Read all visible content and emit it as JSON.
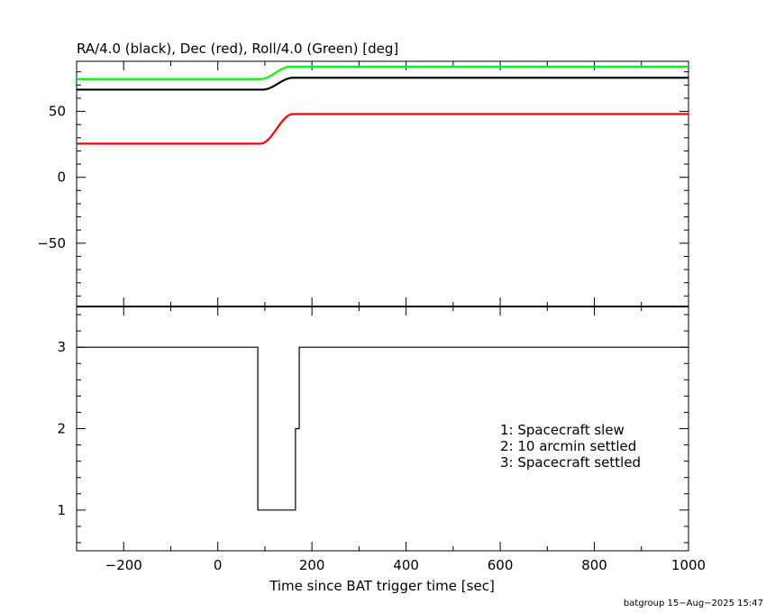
{
  "chart_data": [
    {
      "type": "line",
      "title": "RA/4.0 (black), Dec (red), Roll/4.0 (Green) [deg]",
      "xlim": [
        -300,
        1000
      ],
      "ylim": [
        -98,
        88
      ],
      "yticks": [
        -50,
        0,
        50
      ],
      "ytick_labels": [
        "−50",
        "0",
        "50"
      ],
      "grid": false,
      "series": [
        {
          "color": "#000000",
          "x": [
            -300,
            95,
            160,
            1000
          ],
          "y": [
            66.5,
            66.5,
            75.5,
            75.5
          ]
        },
        {
          "color": "#ff0000",
          "x": [
            -300,
            90,
            160,
            1000
          ],
          "y": [
            25.5,
            25.5,
            48.0,
            48.0
          ]
        },
        {
          "color": "#00ff00",
          "x": [
            -300,
            90,
            155,
            1000
          ],
          "y": [
            74.5,
            74.5,
            84.0,
            84.0
          ]
        }
      ]
    },
    {
      "type": "line",
      "xlim": [
        -300,
        1000
      ],
      "ylim": [
        0.5,
        3.5
      ],
      "yticks": [
        1,
        2,
        3
      ],
      "ytick_labels": [
        "1",
        "2",
        "3"
      ],
      "xticks": [
        -200,
        0,
        200,
        400,
        600,
        800,
        1000
      ],
      "xtick_labels": [
        "−200",
        "0",
        "200",
        "400",
        "600",
        "800",
        "1000"
      ],
      "xlabel": "Time since BAT trigger time [sec]",
      "grid": false,
      "series": [
        {
          "color": "#000000",
          "x": [
            -300,
            85,
            85,
            165,
            165,
            173,
            173,
            1000
          ],
          "y": [
            3,
            3,
            1,
            1,
            2,
            2,
            3,
            3
          ]
        }
      ],
      "annotations": [
        "1: Spacecraft slew",
        "2: 10 arcmin settled",
        "3: Spacecraft settled"
      ]
    }
  ],
  "footer": "batgroup 15−Aug−2025 15:47"
}
